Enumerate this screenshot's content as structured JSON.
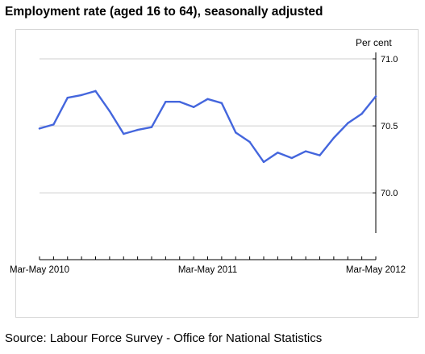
{
  "title": "Employment rate (aged 16 to 64), seasonally adjusted",
  "source": "Source: Labour Force Survey - Office for National Statistics",
  "colors": {
    "series": "#4466dd",
    "grid": "#cfcfcf",
    "axis": "#000000",
    "frame": "#d6d6d6"
  },
  "chart_data": {
    "type": "line",
    "title": "Employment rate (aged 16 to 64), seasonally adjusted",
    "ylabel": "Per cent",
    "y_axis_position": "right",
    "ylim": [
      69.7,
      71.0
    ],
    "yticks": [
      {
        "value": 71.0,
        "label": "71.0"
      },
      {
        "value": 70.5,
        "label": "70.5"
      },
      {
        "value": 70.0,
        "label": "70.0"
      }
    ],
    "grid": true,
    "x_tick_count": 25,
    "x_labels": [
      {
        "index": 0,
        "label": "Mar-May 2010"
      },
      {
        "index": 12,
        "label": "Mar-May 2011"
      },
      {
        "index": 24,
        "label": "Mar-May 2012"
      }
    ],
    "series": [
      {
        "values": [
          70.48,
          70.51,
          70.71,
          70.73,
          70.76,
          70.61,
          70.44,
          70.47,
          70.49,
          70.68,
          70.68,
          70.64,
          70.7,
          70.67,
          70.45,
          70.38,
          70.23,
          70.3,
          70.26,
          70.31,
          70.28,
          70.41,
          70.52,
          70.59,
          70.72
        ]
      }
    ]
  }
}
